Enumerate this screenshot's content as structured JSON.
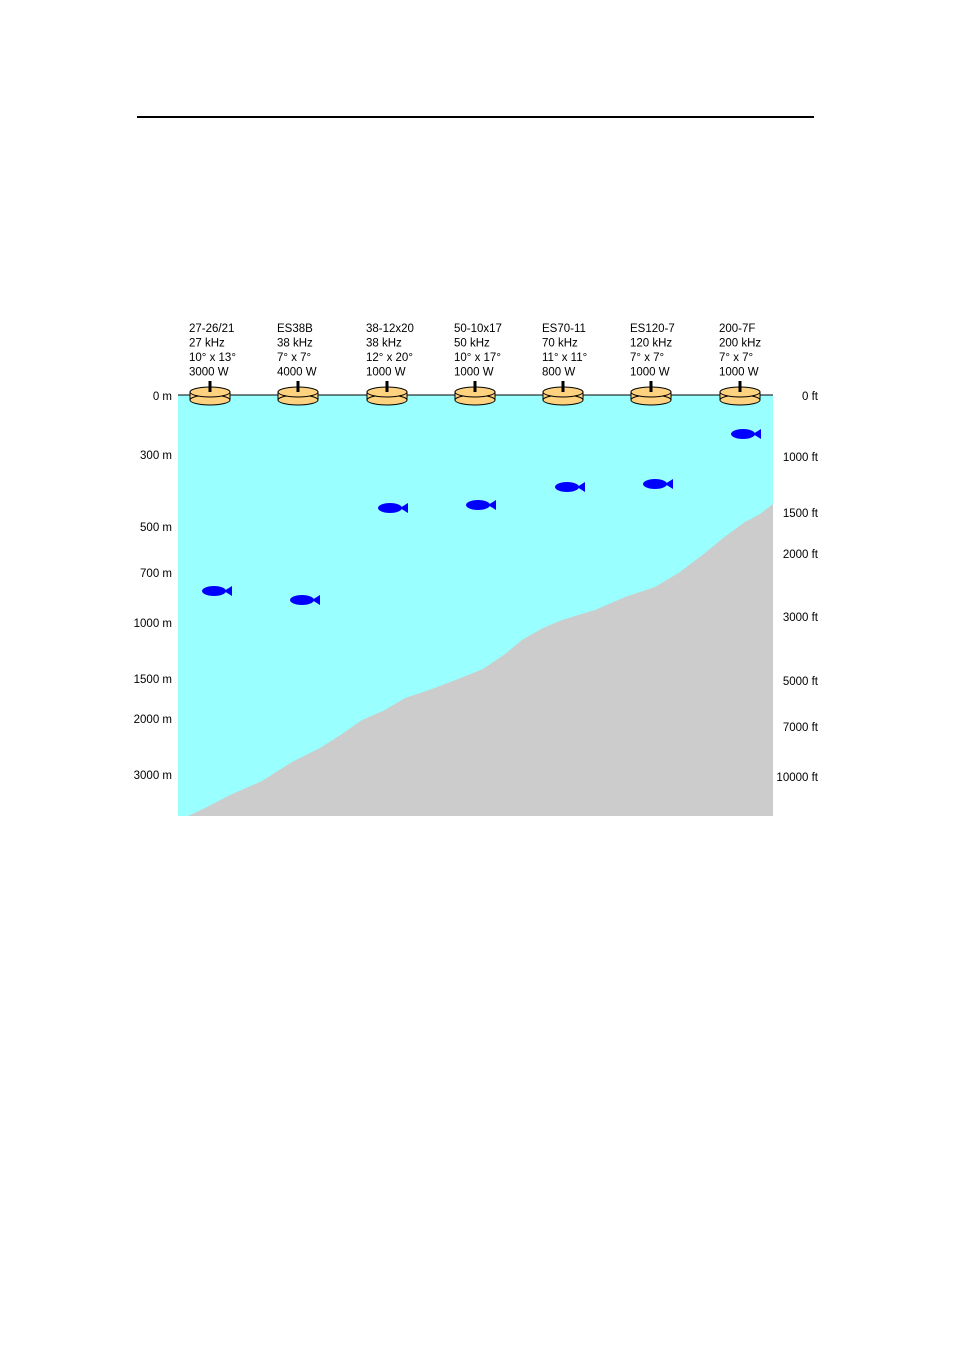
{
  "colors": {
    "water": "#99ffff",
    "seabed": "#cccccc",
    "transducer_fill": "#ffd27f",
    "fish": "#0000ff"
  },
  "transducers": [
    {
      "model": "27-26/21",
      "frequency": "27 kHz",
      "beamwidth": "10° x 13°",
      "power": "3000 W",
      "fish_depth_m": 800
    },
    {
      "model": "ES38B",
      "frequency": "38 kHz",
      "beamwidth": "7° x 7°",
      "power": "4000 W",
      "fish_depth_m": 900
    },
    {
      "model": "38-12x20",
      "frequency": "38 kHz",
      "beamwidth": "12° x 20°",
      "power": "1000 W",
      "fish_depth_m": 450
    },
    {
      "model": "50-10x17",
      "frequency": "50 kHz",
      "beamwidth": "10° x 17°",
      "power": "1000 W",
      "fish_depth_m": 430
    },
    {
      "model": "ES70-11",
      "frequency": "70 kHz",
      "beamwidth": "11° x 11°",
      "power": "800 W",
      "fish_depth_m": 380
    },
    {
      "model": "ES120-7",
      "frequency": "120 kHz",
      "beamwidth": "7° x 7°",
      "power": "1000 W",
      "fish_depth_m": 360
    },
    {
      "model": "200-7F",
      "frequency": "200 kHz",
      "beamwidth": "7° x 7°",
      "power": "1000 W",
      "fish_depth_m": 170
    }
  ],
  "depth_scale_m": [
    "0 m",
    "300 m",
    "500 m",
    "700 m",
    "1000 m",
    "1500 m",
    "2000 m",
    "3000 m"
  ],
  "depth_scale_ft": [
    "0 ft",
    "1000 ft",
    "1500 ft",
    "2000 ft",
    "3000 ft",
    "5000 ft",
    "7000 ft",
    "10000 ft"
  ]
}
